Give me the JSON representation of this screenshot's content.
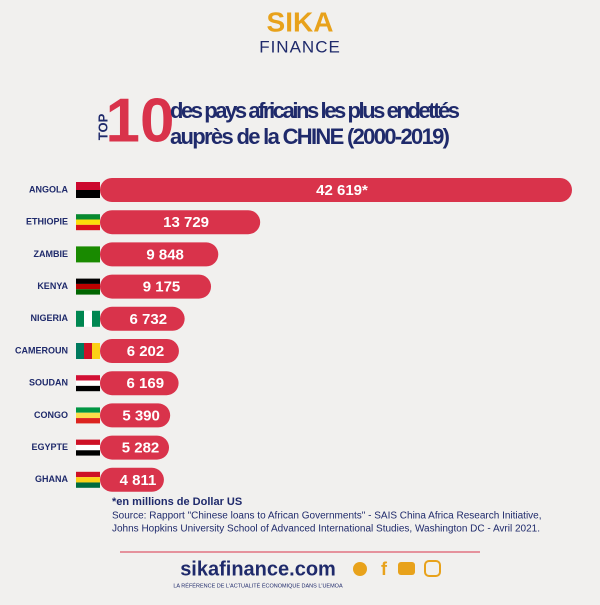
{
  "brand": {
    "name": "SIKA",
    "sub": "FINANCE"
  },
  "chart_data": {
    "type": "bar",
    "orientation": "horizontal",
    "title_prefix": "TOP",
    "title_number": "10",
    "title": "des pays africains les plus endettés",
    "subtitle": "auprès de la CHINE (2000-2019)",
    "categories": [
      "ANGOLA",
      "ETHIOPIE",
      "ZAMBIE",
      "KENYA",
      "NIGERIA",
      "CAMEROUN",
      "SOUDAN",
      "CONGO",
      "EGYPTE",
      "GHANA"
    ],
    "values": [
      42619,
      13729,
      9848,
      9175,
      6732,
      6202,
      6169,
      5390,
      5282,
      4811
    ],
    "value_labels": [
      "42 619*",
      "13 729",
      "9 848",
      "9 175",
      "6 732",
      "6 202",
      "6 169",
      "5 390",
      "5 282",
      "4 811"
    ],
    "color": "#d9334b",
    "note": "*en millions de Dollar US",
    "source": [
      "Source: Rapport \"Chinese loans to African Governments\" - SAIS China Africa Research Initiative,",
      "Johns Hopkins University School of Advanced International Studies, Washington DC - Avril 2021."
    ]
  },
  "footer": {
    "site": "sikafinance.com",
    "tagline": "LA RÉFÉRENCE DE L'ACTUALITÉ ÉCONOMIQUE DANS L'UEMOA"
  }
}
